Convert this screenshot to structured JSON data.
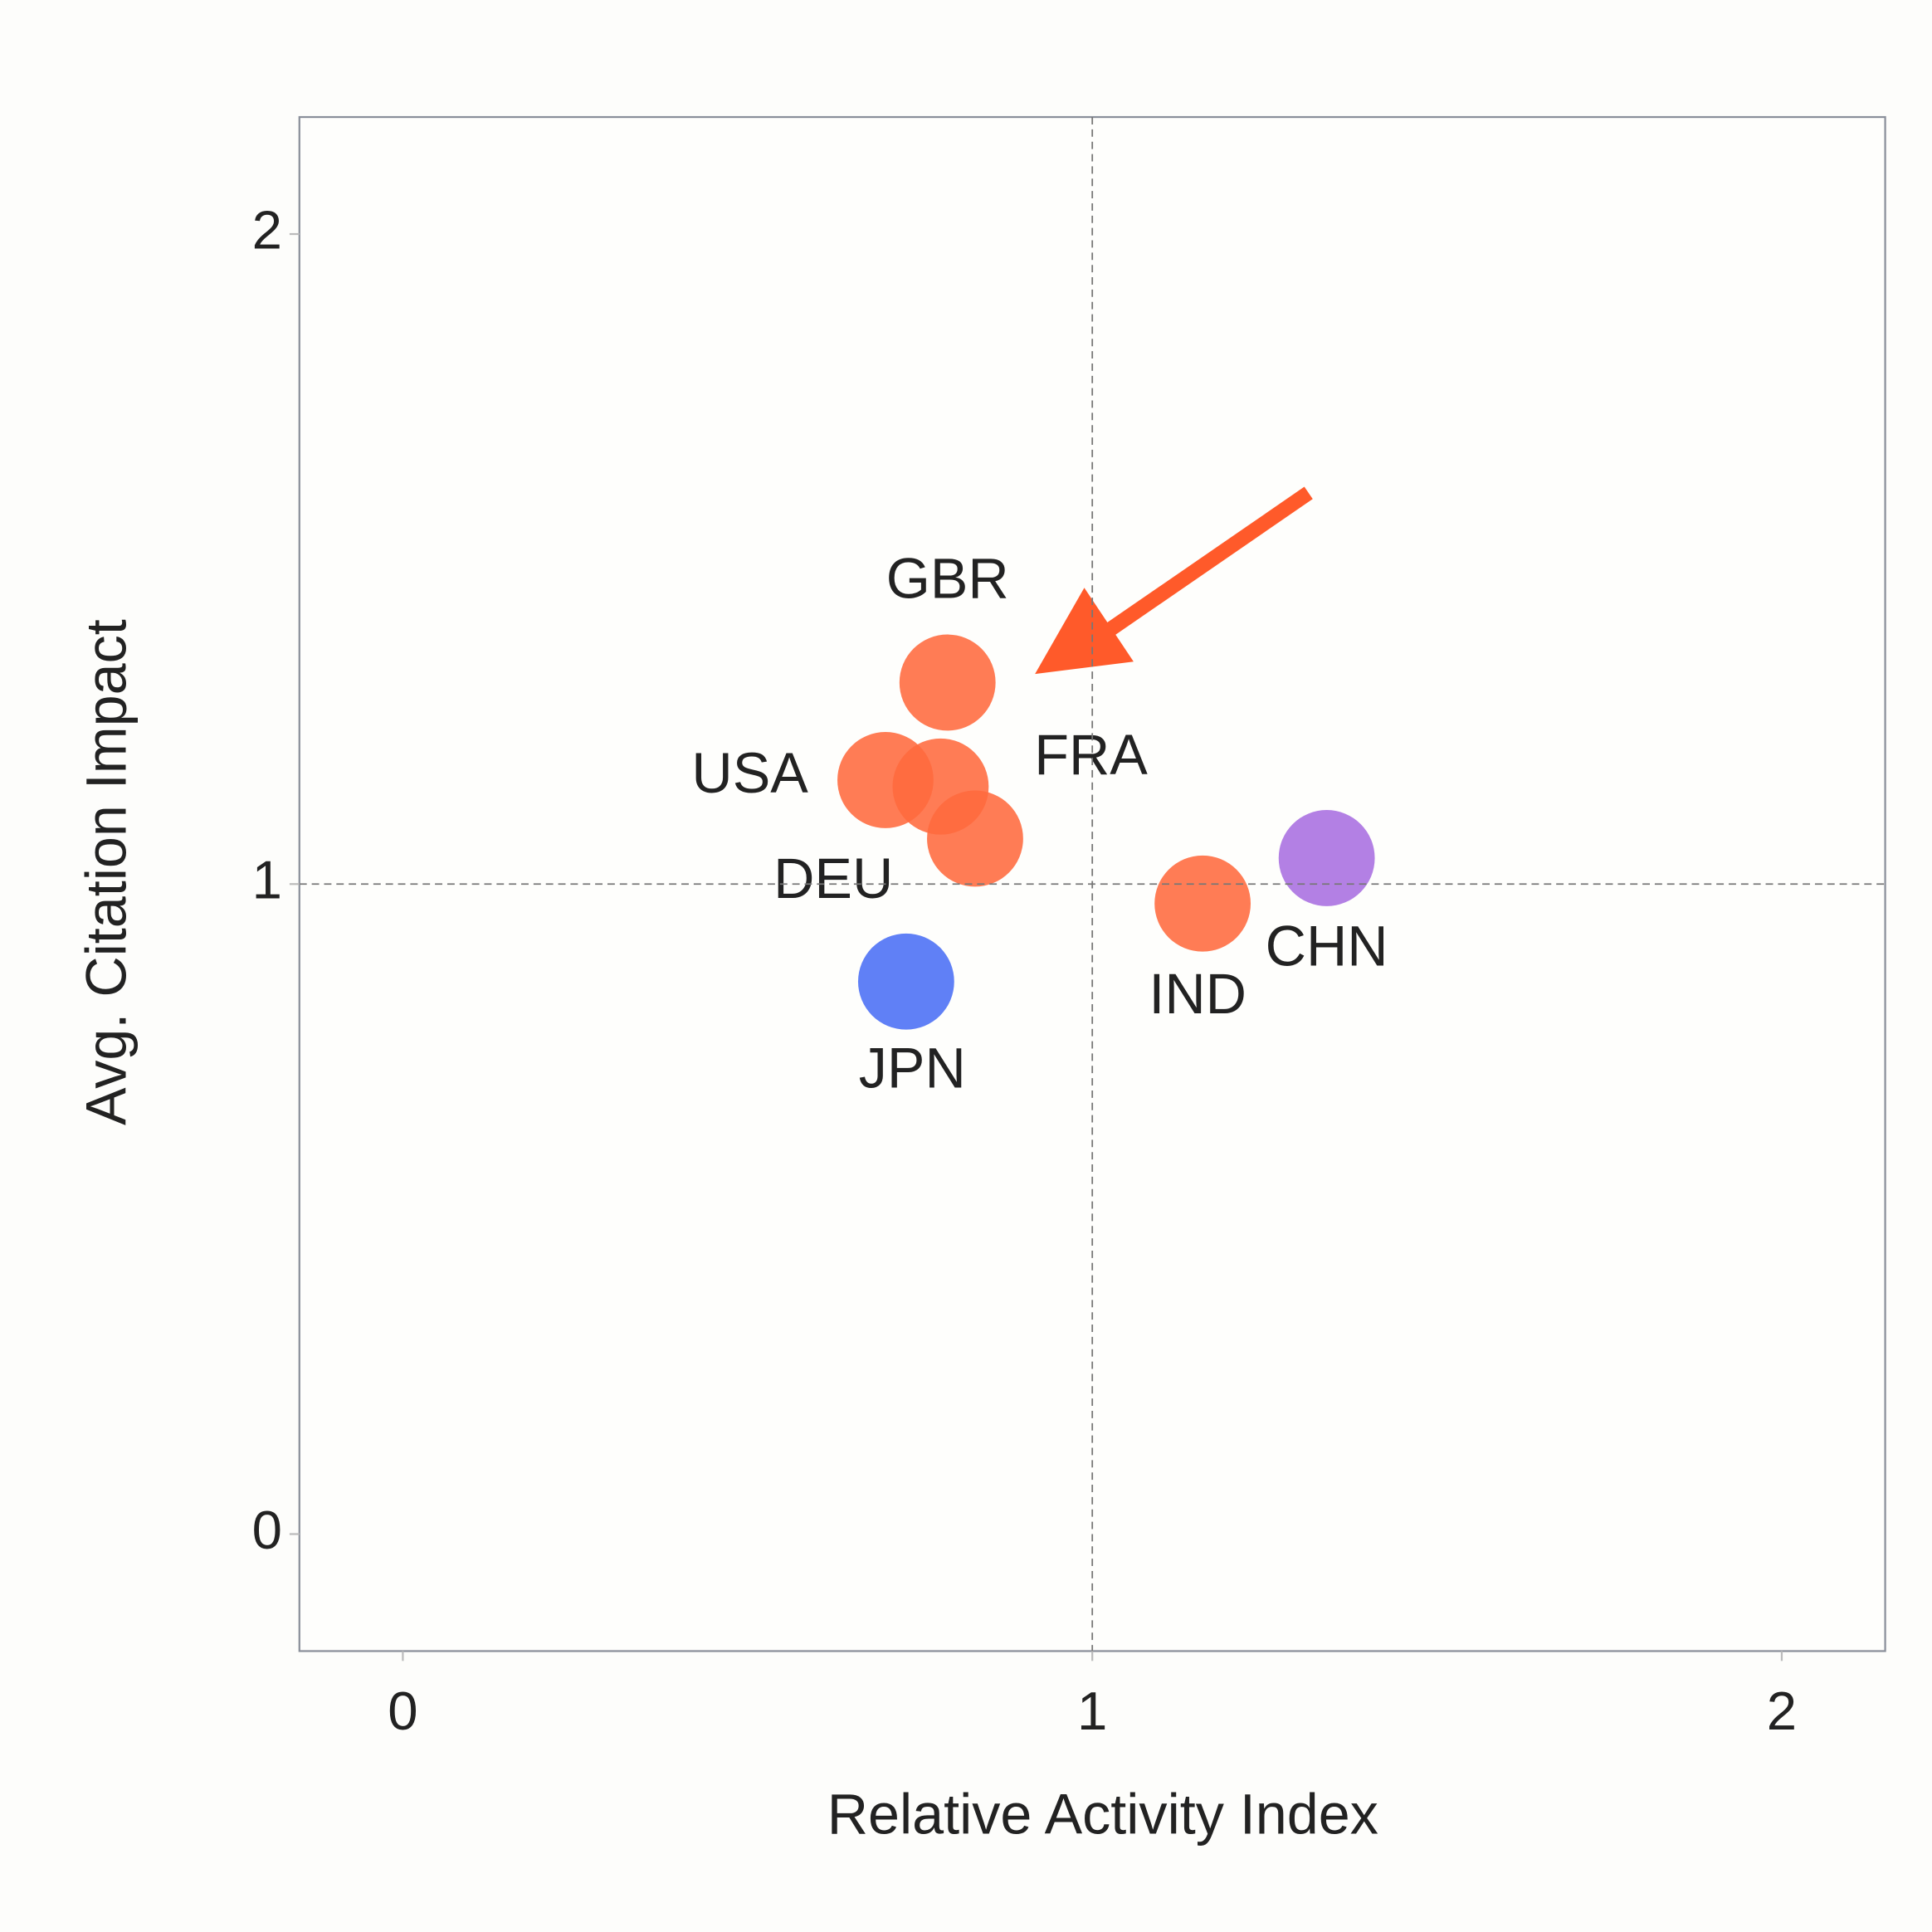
{
  "chart_data": {
    "type": "scatter",
    "x_label": "Relative Activity Index",
    "y_label": "Avg. Citation Impact",
    "labels": [
      "GBR",
      "USA",
      "FRA",
      "DEU",
      "IND",
      "CHN",
      "JPN"
    ],
    "x": [
      0.79,
      0.7,
      0.78,
      0.83,
      1.16,
      1.34,
      0.73
    ],
    "values": [
      1.31,
      1.16,
      1.15,
      1.07,
      0.97,
      1.04,
      0.85
    ],
    "colors": [
      "#ff6a3d",
      "#ff6a3d",
      "#ff6a3d",
      "#ff6a3d",
      "#ff6a3d",
      "#a86ee0",
      "#4a6ef5"
    ],
    "xlim": [
      -0.15,
      2.15
    ],
    "ylim": [
      -0.18,
      2.18
    ],
    "xticks": [
      0,
      1,
      2
    ],
    "yticks": [
      0,
      1,
      2
    ],
    "reference_x": 1,
    "reference_y": 1
  }
}
